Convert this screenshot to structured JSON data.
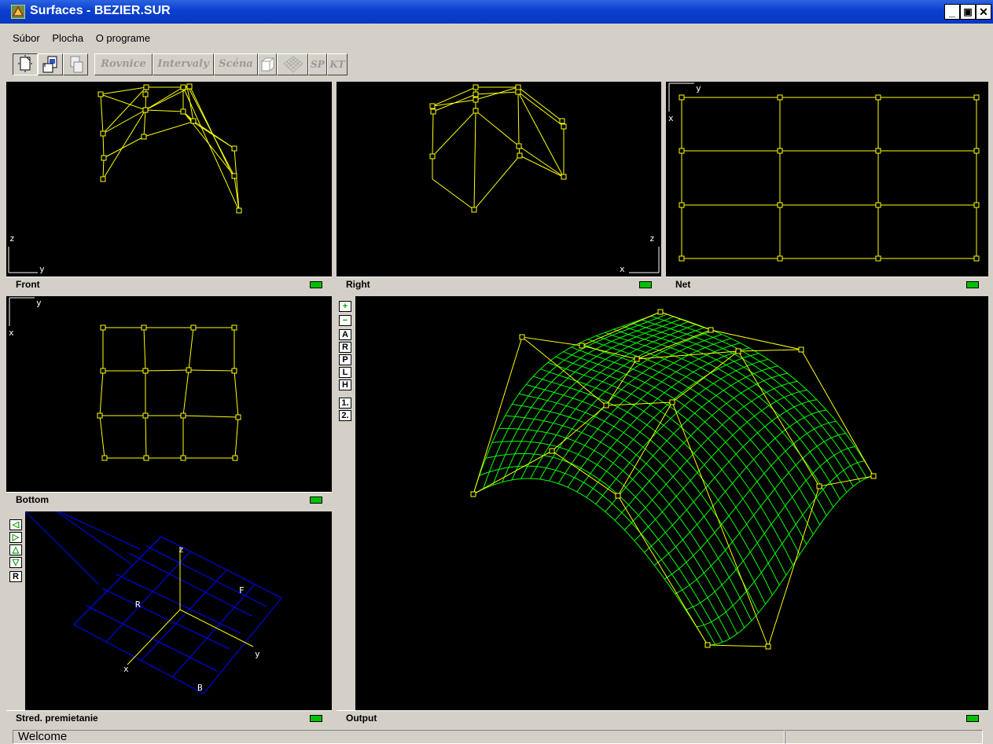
{
  "window": {
    "title": "Surfaces - BEZIER.SUR",
    "controls": {
      "minimize": "_",
      "restore": "5",
      "close": "✕"
    }
  },
  "menu": [
    "Súbor",
    "Plocha",
    "O programe"
  ],
  "toolbar": {
    "file_buttons": [
      "new-file-icon",
      "open-file-icon",
      "save-file-icon"
    ],
    "text_buttons": [
      "Rovnice",
      "Intervaly",
      "Scéna"
    ],
    "icon_buttons": [
      "cube-icon",
      "mesh-icon"
    ],
    "extra_buttons": [
      "SP",
      "KT"
    ]
  },
  "panes": {
    "front": {
      "caption": "Front",
      "axis_v": "z",
      "axis_h": "y"
    },
    "right": {
      "caption": "Right",
      "axis_v": "z",
      "axis_h": "x"
    },
    "net": {
      "caption": "Net",
      "axis_h": "y",
      "axis_v": "x"
    },
    "bottom": {
      "caption": "Bottom",
      "axis_h": "y",
      "axis_v": "x"
    },
    "center": {
      "caption": "Stred. premietanie",
      "labels": {
        "z": "z",
        "y": "y",
        "x": "x",
        "F": "F",
        "R": "R",
        "B": "B"
      },
      "buttons": [
        "◁",
        "▷",
        "△",
        "▽",
        "R"
      ]
    },
    "output": {
      "caption": "Output",
      "buttons": [
        "+",
        "−",
        "A",
        "R",
        "P",
        "L",
        "H",
        "1.",
        "2."
      ]
    }
  },
  "status": {
    "message": "Welcome"
  },
  "colors": {
    "control_net": "#ffff00",
    "surface": "#00ff00",
    "grid": "#0000ff",
    "background": "#000000"
  }
}
